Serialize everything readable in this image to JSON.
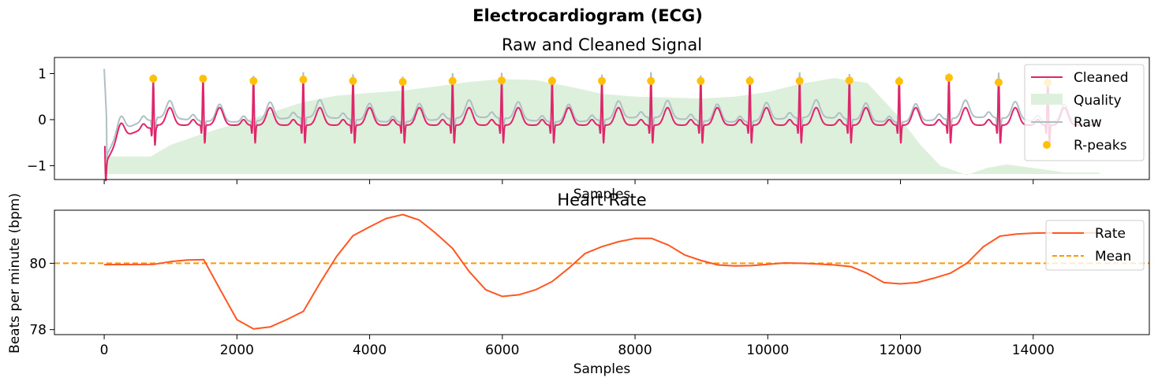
{
  "figure": {
    "title": "Electrocardiogram (ECG)"
  },
  "chart_data": [
    {
      "type": "line",
      "title": "Raw and Cleaned Signal",
      "xlabel": "Samples",
      "ylabel": "",
      "xlim": [
        -750,
        15750
      ],
      "ylim": [
        -1.3,
        1.35
      ],
      "yticks": [
        -1,
        0,
        1
      ],
      "ytick_labels": [
        "−1",
        "0",
        "1"
      ],
      "xticks": [
        0,
        2000,
        4000,
        6000,
        8000,
        10000,
        12000,
        14000
      ],
      "xtick_labels_shown": false,
      "grid": false,
      "legend_position": "top-right",
      "legend": [
        "Cleaned",
        "Quality",
        "Raw",
        "R-peaks"
      ],
      "colors": {
        "cleaned": "#E0256A",
        "raw": "#B0BEC5",
        "quality": "#DCF0DC",
        "rpeaks": "#FFC107"
      },
      "rpeaks": {
        "x": [
          740,
          1490,
          2250,
          3000,
          3750,
          4500,
          5250,
          5990,
          6750,
          7500,
          8240,
          8990,
          9730,
          10480,
          11230,
          11980,
          12730,
          13480,
          14220
        ],
        "y": [
          0.89,
          0.89,
          0.84,
          0.87,
          0.84,
          0.82,
          0.84,
          0.85,
          0.84,
          0.84,
          0.84,
          0.84,
          0.84,
          0.84,
          0.85,
          0.83,
          0.91,
          0.81,
          0.8
        ]
      },
      "quality": {
        "x": [
          0,
          700,
          1000,
          1500,
          2000,
          2500,
          3000,
          3500,
          4000,
          4500,
          5000,
          5500,
          6000,
          6500,
          7000,
          7500,
          8000,
          8500,
          9000,
          9500,
          10000,
          10500,
          11000,
          11500,
          12000,
          12300,
          12600,
          13000,
          13300,
          13600,
          14000,
          14500,
          15000
        ],
        "y": [
          -0.8,
          -0.8,
          -0.55,
          -0.3,
          -0.08,
          0.15,
          0.38,
          0.52,
          0.58,
          0.63,
          0.72,
          0.82,
          0.88,
          0.86,
          0.72,
          0.56,
          0.5,
          0.48,
          0.46,
          0.5,
          0.6,
          0.78,
          0.9,
          0.8,
          0.02,
          -0.55,
          -1.0,
          -1.2,
          -1.05,
          -0.97,
          -1.05,
          -1.15,
          -1.15
        ]
      },
      "quality_base": -1.18
    },
    {
      "type": "line",
      "title": "Heart Rate",
      "xlabel": "Samples",
      "ylabel": "Beats per minute (bpm)",
      "xlim": [
        -750,
        15750
      ],
      "ylim": [
        77.85,
        81.6
      ],
      "yticks": [
        78,
        80
      ],
      "xticks": [
        0,
        2000,
        4000,
        6000,
        8000,
        10000,
        12000,
        14000
      ],
      "xtick_labels": [
        "0",
        "2000",
        "4000",
        "6000",
        "8000",
        "10000",
        "12000",
        "14000"
      ],
      "grid": false,
      "legend_position": "top-right",
      "legend": [
        "Rate",
        "Mean"
      ],
      "colors": {
        "rate": "#FF5722",
        "mean": "#FF9800"
      },
      "mean": 80.0,
      "series": [
        {
          "x": [
            0,
            750,
            1000,
            1250,
            1500,
            1750,
            2000,
            2250,
            2500,
            2750,
            3000,
            3250,
            3500,
            3750,
            4000,
            4250,
            4500,
            4750,
            5000,
            5250,
            5500,
            5750,
            6000,
            6250,
            6500,
            6750,
            7000,
            7250,
            7500,
            7750,
            8000,
            8250,
            8500,
            8750,
            9000,
            9250,
            9500,
            9750,
            10000,
            10250,
            10500,
            10750,
            11000,
            11250,
            11500,
            11750,
            12000,
            12250,
            12500,
            12750,
            13000,
            13250,
            13500,
            13750,
            14000,
            14250,
            15000
          ],
          "y": [
            79.96,
            79.97,
            80.05,
            80.1,
            80.11,
            79.2,
            78.3,
            78.02,
            78.08,
            78.3,
            78.55,
            79.4,
            80.2,
            80.83,
            81.1,
            81.35,
            81.47,
            81.3,
            80.9,
            80.45,
            79.75,
            79.2,
            79.0,
            79.05,
            79.2,
            79.45,
            79.85,
            80.3,
            80.5,
            80.65,
            80.75,
            80.75,
            80.55,
            80.25,
            80.08,
            79.95,
            79.92,
            79.93,
            79.97,
            80.01,
            80.0,
            79.98,
            79.95,
            79.9,
            79.7,
            79.42,
            79.38,
            79.42,
            79.55,
            79.7,
            80.0,
            80.5,
            80.82,
            80.88,
            80.91,
            80.92,
            80.92
          ]
        }
      ]
    }
  ]
}
